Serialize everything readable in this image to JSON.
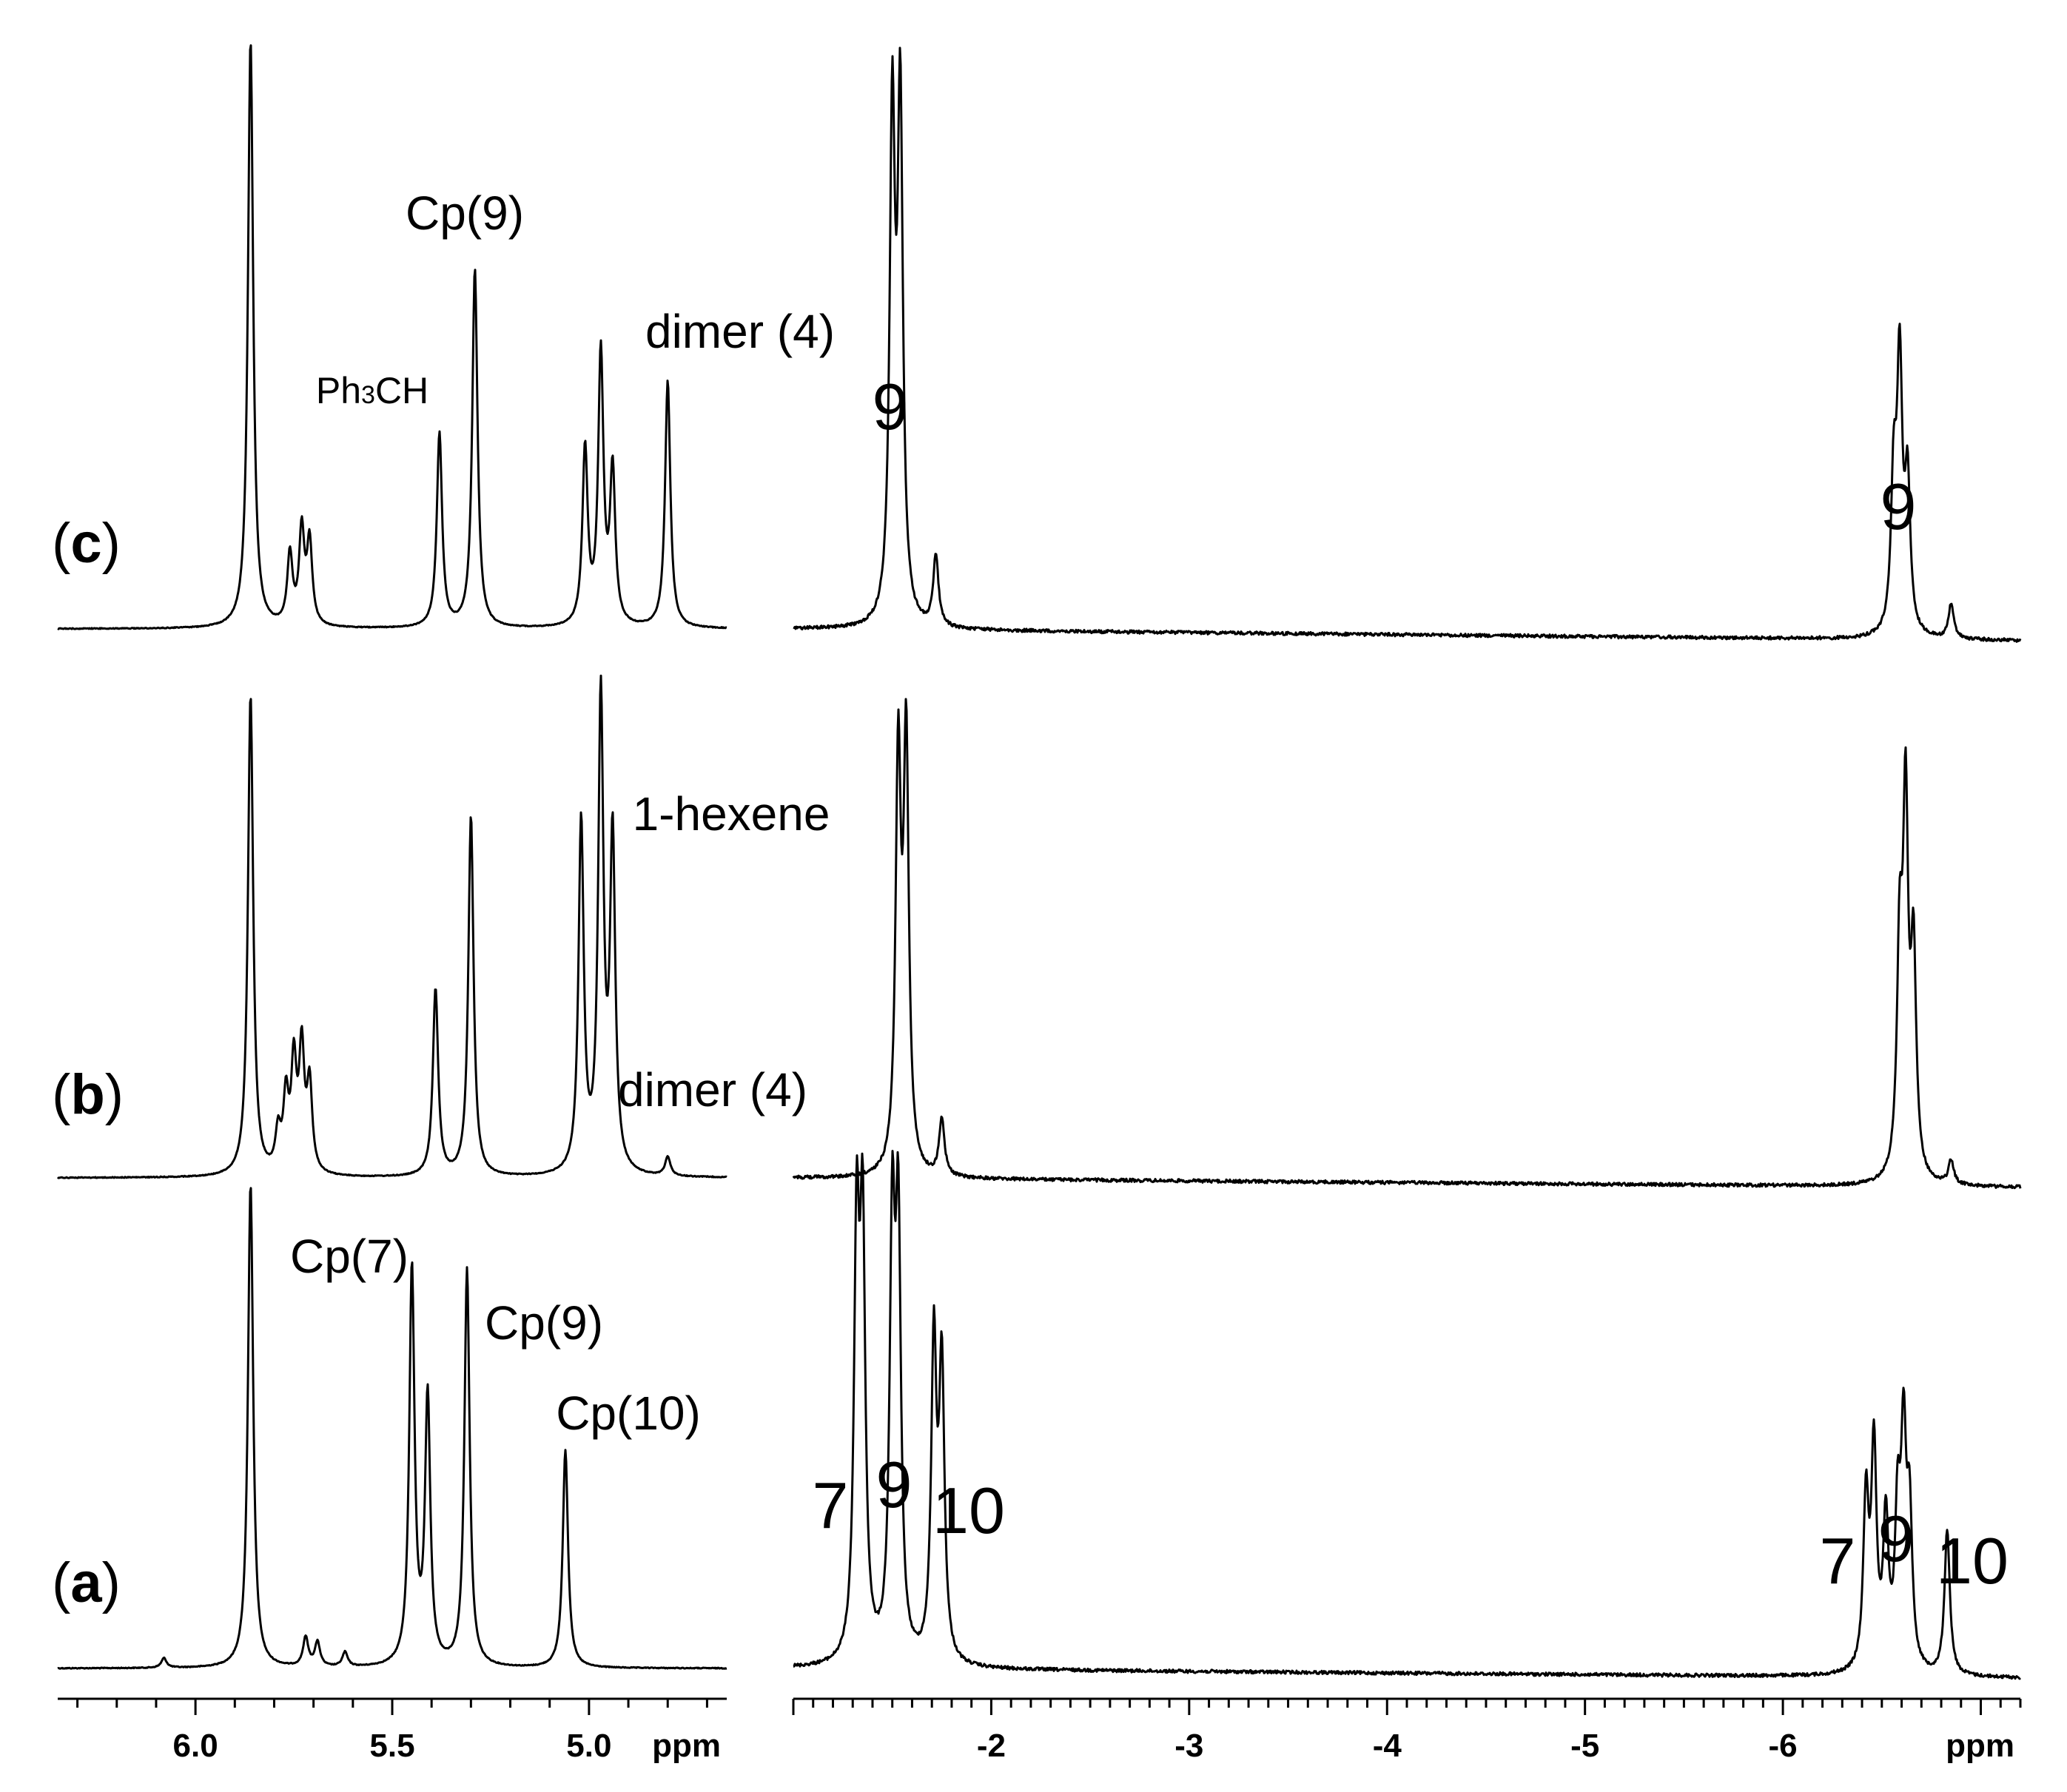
{
  "chart_data": {
    "type": "line",
    "title": "",
    "panels": [
      {
        "label": "a",
        "paren_open": "(",
        "paren_close": ")"
      },
      {
        "label": "b",
        "paren_open": "(",
        "paren_close": ")"
      },
      {
        "label": "c",
        "paren_open": "(",
        "paren_close": ")"
      }
    ],
    "x_axes": [
      {
        "id": "left",
        "unit": "ppm",
        "range": [
          6.35,
          4.65
        ],
        "reversed": true,
        "major_ticks": [
          6.0,
          5.5,
          5.0
        ],
        "tick_labels": [
          "6.0",
          "5.5",
          "5.0"
        ]
      },
      {
        "id": "right",
        "unit": "ppm",
        "range": [
          -1.0,
          -7.2
        ],
        "reversed": true,
        "major_ticks": [
          -1,
          -2,
          -3,
          -4,
          -5,
          -6,
          -7
        ],
        "tick_labels": [
          "-2",
          "-3",
          "-4",
          "-5",
          "-6"
        ],
        "labeled_ticks": [
          -2,
          -3,
          -4,
          -5,
          -6
        ]
      }
    ],
    "series": [
      {
        "spectrum": "a",
        "region": "left",
        "peaks": [
          {
            "ppm": 5.86,
            "height": 1.0
          },
          {
            "ppm": 5.45,
            "height": 0.82
          },
          {
            "ppm": 5.41,
            "height": 0.55
          },
          {
            "ppm": 5.31,
            "height": 0.82
          },
          {
            "ppm": 5.06,
            "height": 0.45
          },
          {
            "ppm": 5.72,
            "height": 0.06
          },
          {
            "ppm": 5.69,
            "height": 0.05
          },
          {
            "ppm": 5.62,
            "height": 0.03
          },
          {
            "ppm": 6.08,
            "height": 0.02
          }
        ]
      },
      {
        "spectrum": "a",
        "region": "right",
        "peaks": [
          {
            "ppm": -1.32,
            "height": 0.85
          },
          {
            "ppm": -1.35,
            "height": 0.85
          },
          {
            "ppm": -1.5,
            "height": 0.85
          },
          {
            "ppm": -1.53,
            "height": 0.85
          },
          {
            "ppm": -1.71,
            "height": 0.65
          },
          {
            "ppm": -1.75,
            "height": 0.6
          },
          {
            "ppm": -6.42,
            "height": 0.35
          },
          {
            "ppm": -6.46,
            "height": 0.45
          },
          {
            "ppm": -6.52,
            "height": 0.3
          },
          {
            "ppm": -6.58,
            "height": 0.3
          },
          {
            "ppm": -6.61,
            "height": 0.45
          },
          {
            "ppm": -6.64,
            "height": 0.3
          },
          {
            "ppm": -6.83,
            "height": 0.3
          }
        ]
      },
      {
        "spectrum": "b",
        "region": "left",
        "peaks": [
          {
            "ppm": 5.86,
            "height": 1.0
          },
          {
            "ppm": 5.39,
            "height": 0.39
          },
          {
            "ppm": 5.3,
            "height": 0.75
          },
          {
            "ppm": 5.02,
            "height": 0.73
          },
          {
            "ppm": 4.97,
            "height": 0.98
          },
          {
            "ppm": 4.94,
            "height": 0.69
          },
          {
            "ppm": 4.8,
            "height": 0.04
          },
          {
            "ppm": 5.75,
            "height": 0.22
          },
          {
            "ppm": 5.73,
            "height": 0.25
          },
          {
            "ppm": 5.71,
            "height": 0.18
          },
          {
            "ppm": 5.77,
            "height": 0.15
          },
          {
            "ppm": 5.79,
            "height": 0.08
          }
        ]
      },
      {
        "spectrum": "b",
        "region": "right",
        "peaks": [
          {
            "ppm": -1.53,
            "height": 0.85
          },
          {
            "ppm": -1.57,
            "height": 0.88
          },
          {
            "ppm": -1.75,
            "height": 0.12
          },
          {
            "ppm": -6.59,
            "height": 0.45
          },
          {
            "ppm": -6.62,
            "height": 0.75
          },
          {
            "ppm": -6.66,
            "height": 0.45
          },
          {
            "ppm": -6.85,
            "height": 0.05
          }
        ]
      },
      {
        "spectrum": "c",
        "region": "left",
        "peaks": [
          {
            "ppm": 5.86,
            "height": 1.0
          },
          {
            "ppm": 5.38,
            "height": 0.33
          },
          {
            "ppm": 5.29,
            "height": 0.61
          },
          {
            "ppm": 5.01,
            "height": 0.3
          },
          {
            "ppm": 4.97,
            "height": 0.46
          },
          {
            "ppm": 4.94,
            "height": 0.26
          },
          {
            "ppm": 4.8,
            "height": 0.42
          },
          {
            "ppm": 5.73,
            "height": 0.16
          },
          {
            "ppm": 5.71,
            "height": 0.14
          },
          {
            "ppm": 5.76,
            "height": 0.12
          }
        ]
      },
      {
        "spectrum": "c",
        "region": "right",
        "peaks": [
          {
            "ppm": -1.5,
            "height": 0.85
          },
          {
            "ppm": -1.54,
            "height": 0.87
          },
          {
            "ppm": -1.72,
            "height": 0.12
          },
          {
            "ppm": -6.56,
            "height": 0.25
          },
          {
            "ppm": -6.59,
            "height": 0.45
          },
          {
            "ppm": -6.63,
            "height": 0.25
          },
          {
            "ppm": -6.85,
            "height": 0.06
          }
        ]
      }
    ],
    "annotations": [
      {
        "spectrum": "a",
        "text": "Cp(7)",
        "ppm": 5.46,
        "region": "left"
      },
      {
        "spectrum": "a",
        "text": "Cp(9)",
        "ppm": 5.27,
        "region": "left"
      },
      {
        "spectrum": "a",
        "text": "Cp(10)",
        "ppm": 5.06,
        "region": "left"
      },
      {
        "spectrum": "a",
        "text": "7",
        "ppm": -1.25,
        "region": "right"
      },
      {
        "spectrum": "a",
        "text": "9",
        "ppm": -1.52,
        "region": "right"
      },
      {
        "spectrum": "a",
        "text": "10",
        "ppm": -1.85,
        "region": "right"
      },
      {
        "spectrum": "a",
        "text": "7",
        "ppm": -6.28,
        "region": "right"
      },
      {
        "spectrum": "a",
        "text": "9",
        "ppm": -6.62,
        "region": "right"
      },
      {
        "spectrum": "a",
        "text": "10",
        "ppm": -6.9,
        "region": "right"
      },
      {
        "spectrum": "b",
        "text": "1-hexene",
        "ppm": 4.95,
        "region": "left"
      },
      {
        "spectrum": "b",
        "text": "dimer (4)",
        "ppm": 4.8,
        "region": "left"
      },
      {
        "spectrum": "c",
        "text": "Cp(9)",
        "ppm": 5.35,
        "region": "left"
      },
      {
        "spectrum": "c",
        "text": "Ph3CH",
        "ppm": 5.55,
        "region": "left"
      },
      {
        "spectrum": "c",
        "text": "dimer (4)",
        "ppm": 4.8,
        "region": "left"
      },
      {
        "spectrum": "c",
        "text": "9",
        "ppm": -1.52,
        "region": "right"
      },
      {
        "spectrum": "c",
        "text": "9",
        "ppm": -6.6,
        "region": "right"
      }
    ],
    "grid": false,
    "legend": "none"
  }
}
